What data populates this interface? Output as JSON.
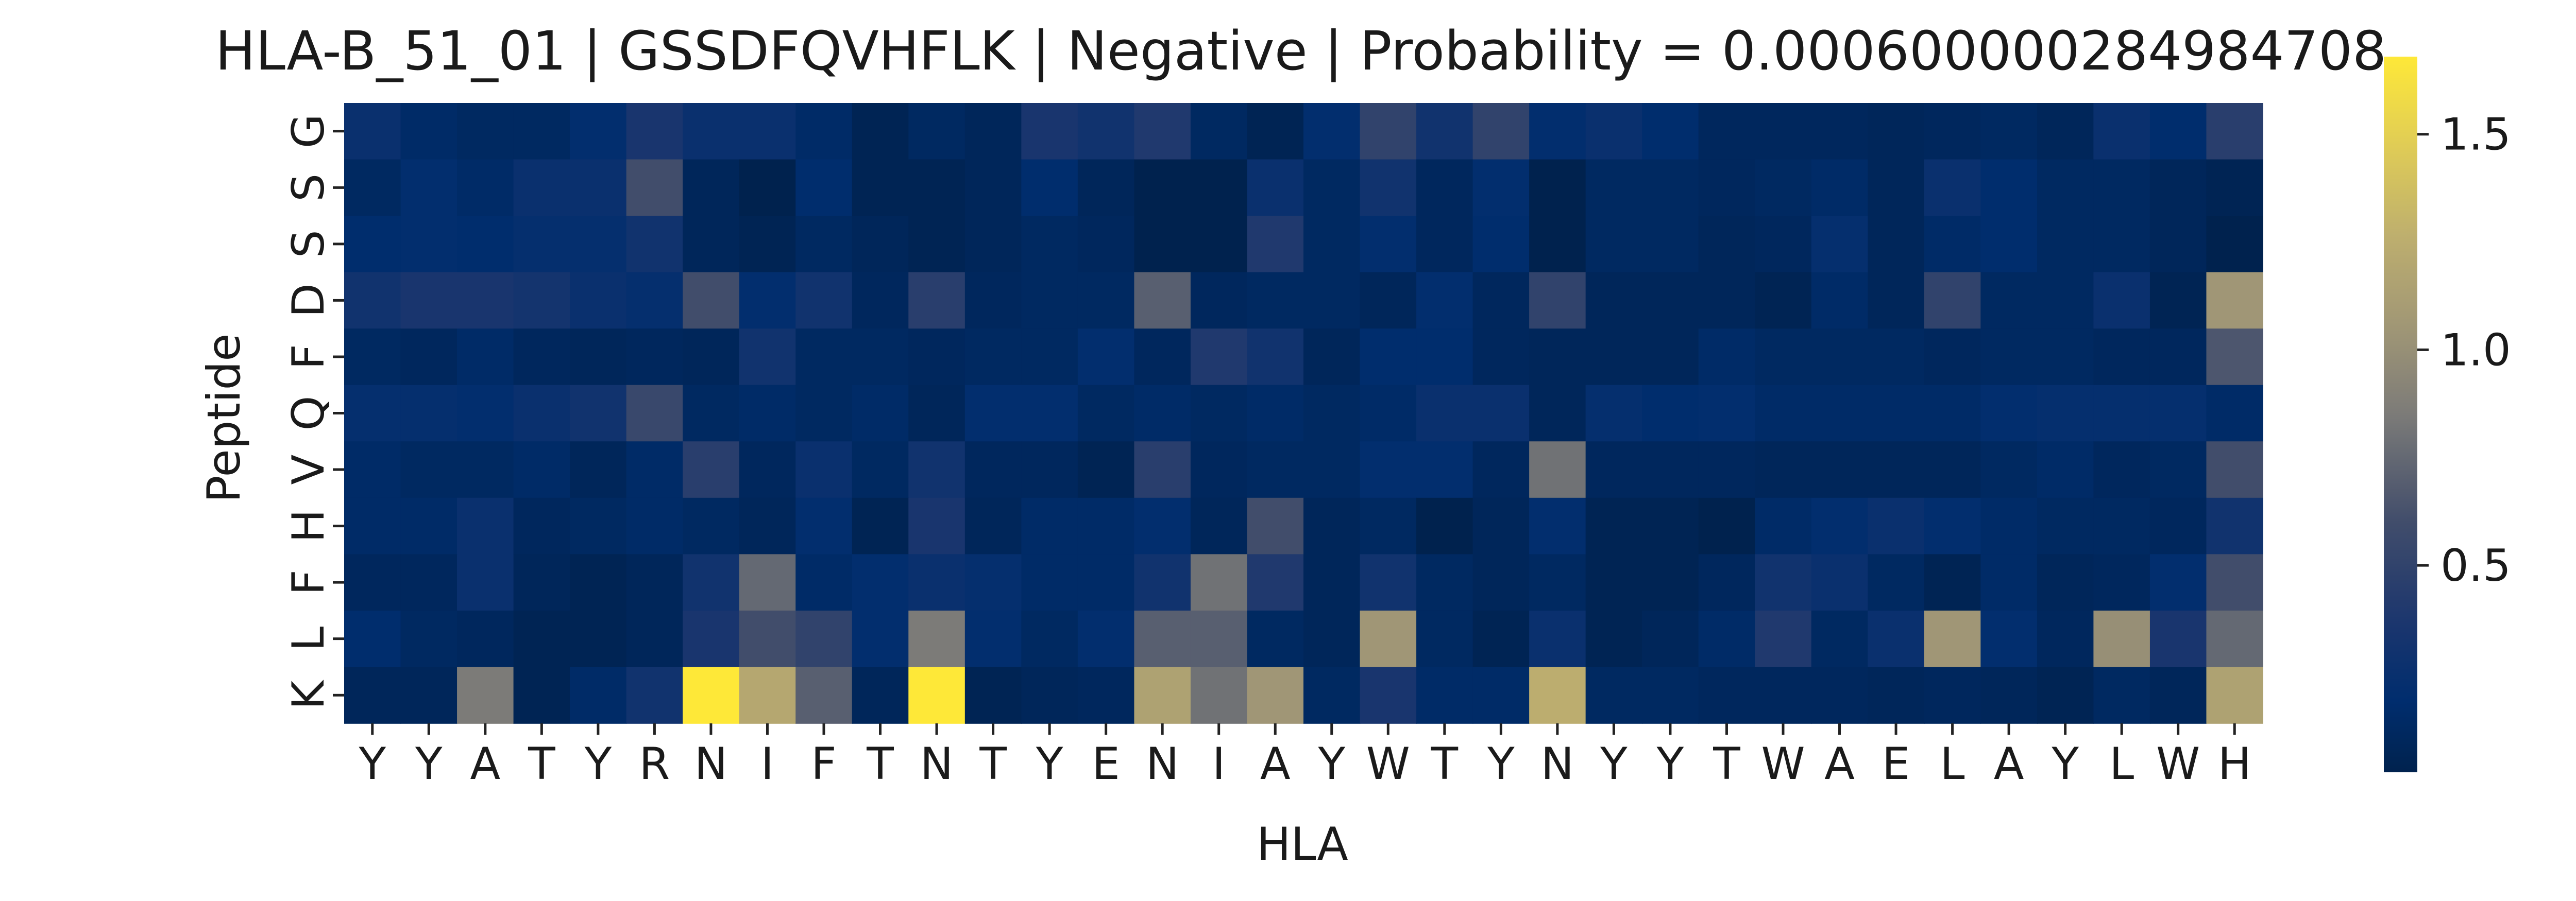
{
  "chart_data": {
    "type": "heatmap",
    "title": "HLA-B_51_01 | GSSDFQVHFLK | Negative | Probability = 0.000600000284984708",
    "xlabel": "HLA",
    "ylabel": "Peptide",
    "x_categories": [
      "Y",
      "Y",
      "A",
      "T",
      "Y",
      "R",
      "N",
      "I",
      "F",
      "T",
      "N",
      "T",
      "Y",
      "E",
      "N",
      "I",
      "A",
      "Y",
      "W",
      "T",
      "Y",
      "N",
      "Y",
      "Y",
      "T",
      "W",
      "A",
      "E",
      "L",
      "A",
      "Y",
      "L",
      "W",
      "H"
    ],
    "y_categories": [
      "G",
      "S",
      "S",
      "D",
      "F",
      "Q",
      "V",
      "H",
      "F",
      "L",
      "K"
    ],
    "colormap": "cividis",
    "color_range": [
      0.02,
      1.68
    ],
    "colorbar_ticks": [
      0.5,
      1.0,
      1.5
    ],
    "colorbar_tick_labels": [
      "0.5",
      "1.0",
      "1.5"
    ],
    "values": [
      [
        0.25,
        0.15,
        0.12,
        0.12,
        0.2,
        0.35,
        0.25,
        0.25,
        0.15,
        0.05,
        0.12,
        0.08,
        0.35,
        0.3,
        0.4,
        0.12,
        0.05,
        0.2,
        0.5,
        0.3,
        0.5,
        0.2,
        0.25,
        0.18,
        0.1,
        0.1,
        0.1,
        0.08,
        0.1,
        0.12,
        0.08,
        0.25,
        0.18,
        0.45
      ],
      [
        0.12,
        0.2,
        0.15,
        0.25,
        0.25,
        0.6,
        0.08,
        0.02,
        0.18,
        0.05,
        0.05,
        0.08,
        0.18,
        0.08,
        0.02,
        0.02,
        0.25,
        0.12,
        0.3,
        0.1,
        0.2,
        0.02,
        0.12,
        0.12,
        0.1,
        0.12,
        0.15,
        0.08,
        0.25,
        0.18,
        0.12,
        0.12,
        0.08,
        0.05
      ],
      [
        0.18,
        0.2,
        0.18,
        0.22,
        0.22,
        0.3,
        0.08,
        0.05,
        0.12,
        0.08,
        0.05,
        0.08,
        0.12,
        0.1,
        0.02,
        0.02,
        0.4,
        0.12,
        0.2,
        0.1,
        0.18,
        0.02,
        0.12,
        0.12,
        0.08,
        0.1,
        0.22,
        0.08,
        0.15,
        0.18,
        0.12,
        0.12,
        0.08,
        0.02
      ],
      [
        0.3,
        0.35,
        0.35,
        0.32,
        0.25,
        0.22,
        0.6,
        0.2,
        0.3,
        0.1,
        0.45,
        0.1,
        0.12,
        0.12,
        0.7,
        0.1,
        0.12,
        0.12,
        0.08,
        0.2,
        0.1,
        0.5,
        0.08,
        0.08,
        0.08,
        0.05,
        0.15,
        0.08,
        0.5,
        0.12,
        0.12,
        0.25,
        0.05,
        1.05
      ],
      [
        0.12,
        0.1,
        0.15,
        0.1,
        0.08,
        0.1,
        0.08,
        0.3,
        0.12,
        0.12,
        0.1,
        0.12,
        0.12,
        0.2,
        0.1,
        0.4,
        0.3,
        0.08,
        0.18,
        0.18,
        0.1,
        0.08,
        0.08,
        0.08,
        0.15,
        0.12,
        0.12,
        0.12,
        0.1,
        0.12,
        0.12,
        0.1,
        0.1,
        0.65
      ],
      [
        0.22,
        0.22,
        0.2,
        0.25,
        0.3,
        0.55,
        0.12,
        0.15,
        0.12,
        0.15,
        0.08,
        0.2,
        0.2,
        0.12,
        0.15,
        0.12,
        0.15,
        0.12,
        0.15,
        0.25,
        0.25,
        0.08,
        0.22,
        0.18,
        0.2,
        0.15,
        0.15,
        0.15,
        0.15,
        0.2,
        0.22,
        0.22,
        0.22,
        0.15
      ],
      [
        0.15,
        0.12,
        0.12,
        0.15,
        0.08,
        0.15,
        0.45,
        0.1,
        0.25,
        0.12,
        0.3,
        0.1,
        0.1,
        0.05,
        0.45,
        0.1,
        0.12,
        0.12,
        0.2,
        0.2,
        0.1,
        0.8,
        0.1,
        0.1,
        0.1,
        0.08,
        0.08,
        0.08,
        0.08,
        0.12,
        0.15,
        0.1,
        0.12,
        0.6
      ],
      [
        0.15,
        0.15,
        0.25,
        0.1,
        0.12,
        0.15,
        0.12,
        0.08,
        0.2,
        0.05,
        0.35,
        0.08,
        0.15,
        0.15,
        0.2,
        0.08,
        0.6,
        0.08,
        0.12,
        0.02,
        0.08,
        0.2,
        0.05,
        0.05,
        0.02,
        0.15,
        0.2,
        0.25,
        0.2,
        0.15,
        0.12,
        0.12,
        0.1,
        0.3
      ],
      [
        0.1,
        0.1,
        0.25,
        0.08,
        0.05,
        0.08,
        0.3,
        0.75,
        0.15,
        0.2,
        0.25,
        0.22,
        0.15,
        0.15,
        0.3,
        0.8,
        0.4,
        0.08,
        0.3,
        0.12,
        0.08,
        0.12,
        0.05,
        0.05,
        0.1,
        0.3,
        0.25,
        0.12,
        0.05,
        0.15,
        0.08,
        0.1,
        0.2,
        0.6
      ],
      [
        0.18,
        0.12,
        0.1,
        0.05,
        0.05,
        0.08,
        0.35,
        0.6,
        0.5,
        0.2,
        0.85,
        0.2,
        0.12,
        0.2,
        0.7,
        0.7,
        0.12,
        0.08,
        1.05,
        0.12,
        0.05,
        0.25,
        0.05,
        0.08,
        0.15,
        0.4,
        0.12,
        0.25,
        1.05,
        0.2,
        0.1,
        1.0,
        0.35,
        0.75
      ],
      [
        0.08,
        0.08,
        0.85,
        0.05,
        0.15,
        0.3,
        1.68,
        1.2,
        0.7,
        0.08,
        1.68,
        0.05,
        0.08,
        0.1,
        1.15,
        0.8,
        1.05,
        0.12,
        0.35,
        0.15,
        0.15,
        1.25,
        0.12,
        0.12,
        0.1,
        0.1,
        0.1,
        0.08,
        0.1,
        0.08,
        0.05,
        0.12,
        0.08,
        1.15
      ]
    ]
  }
}
